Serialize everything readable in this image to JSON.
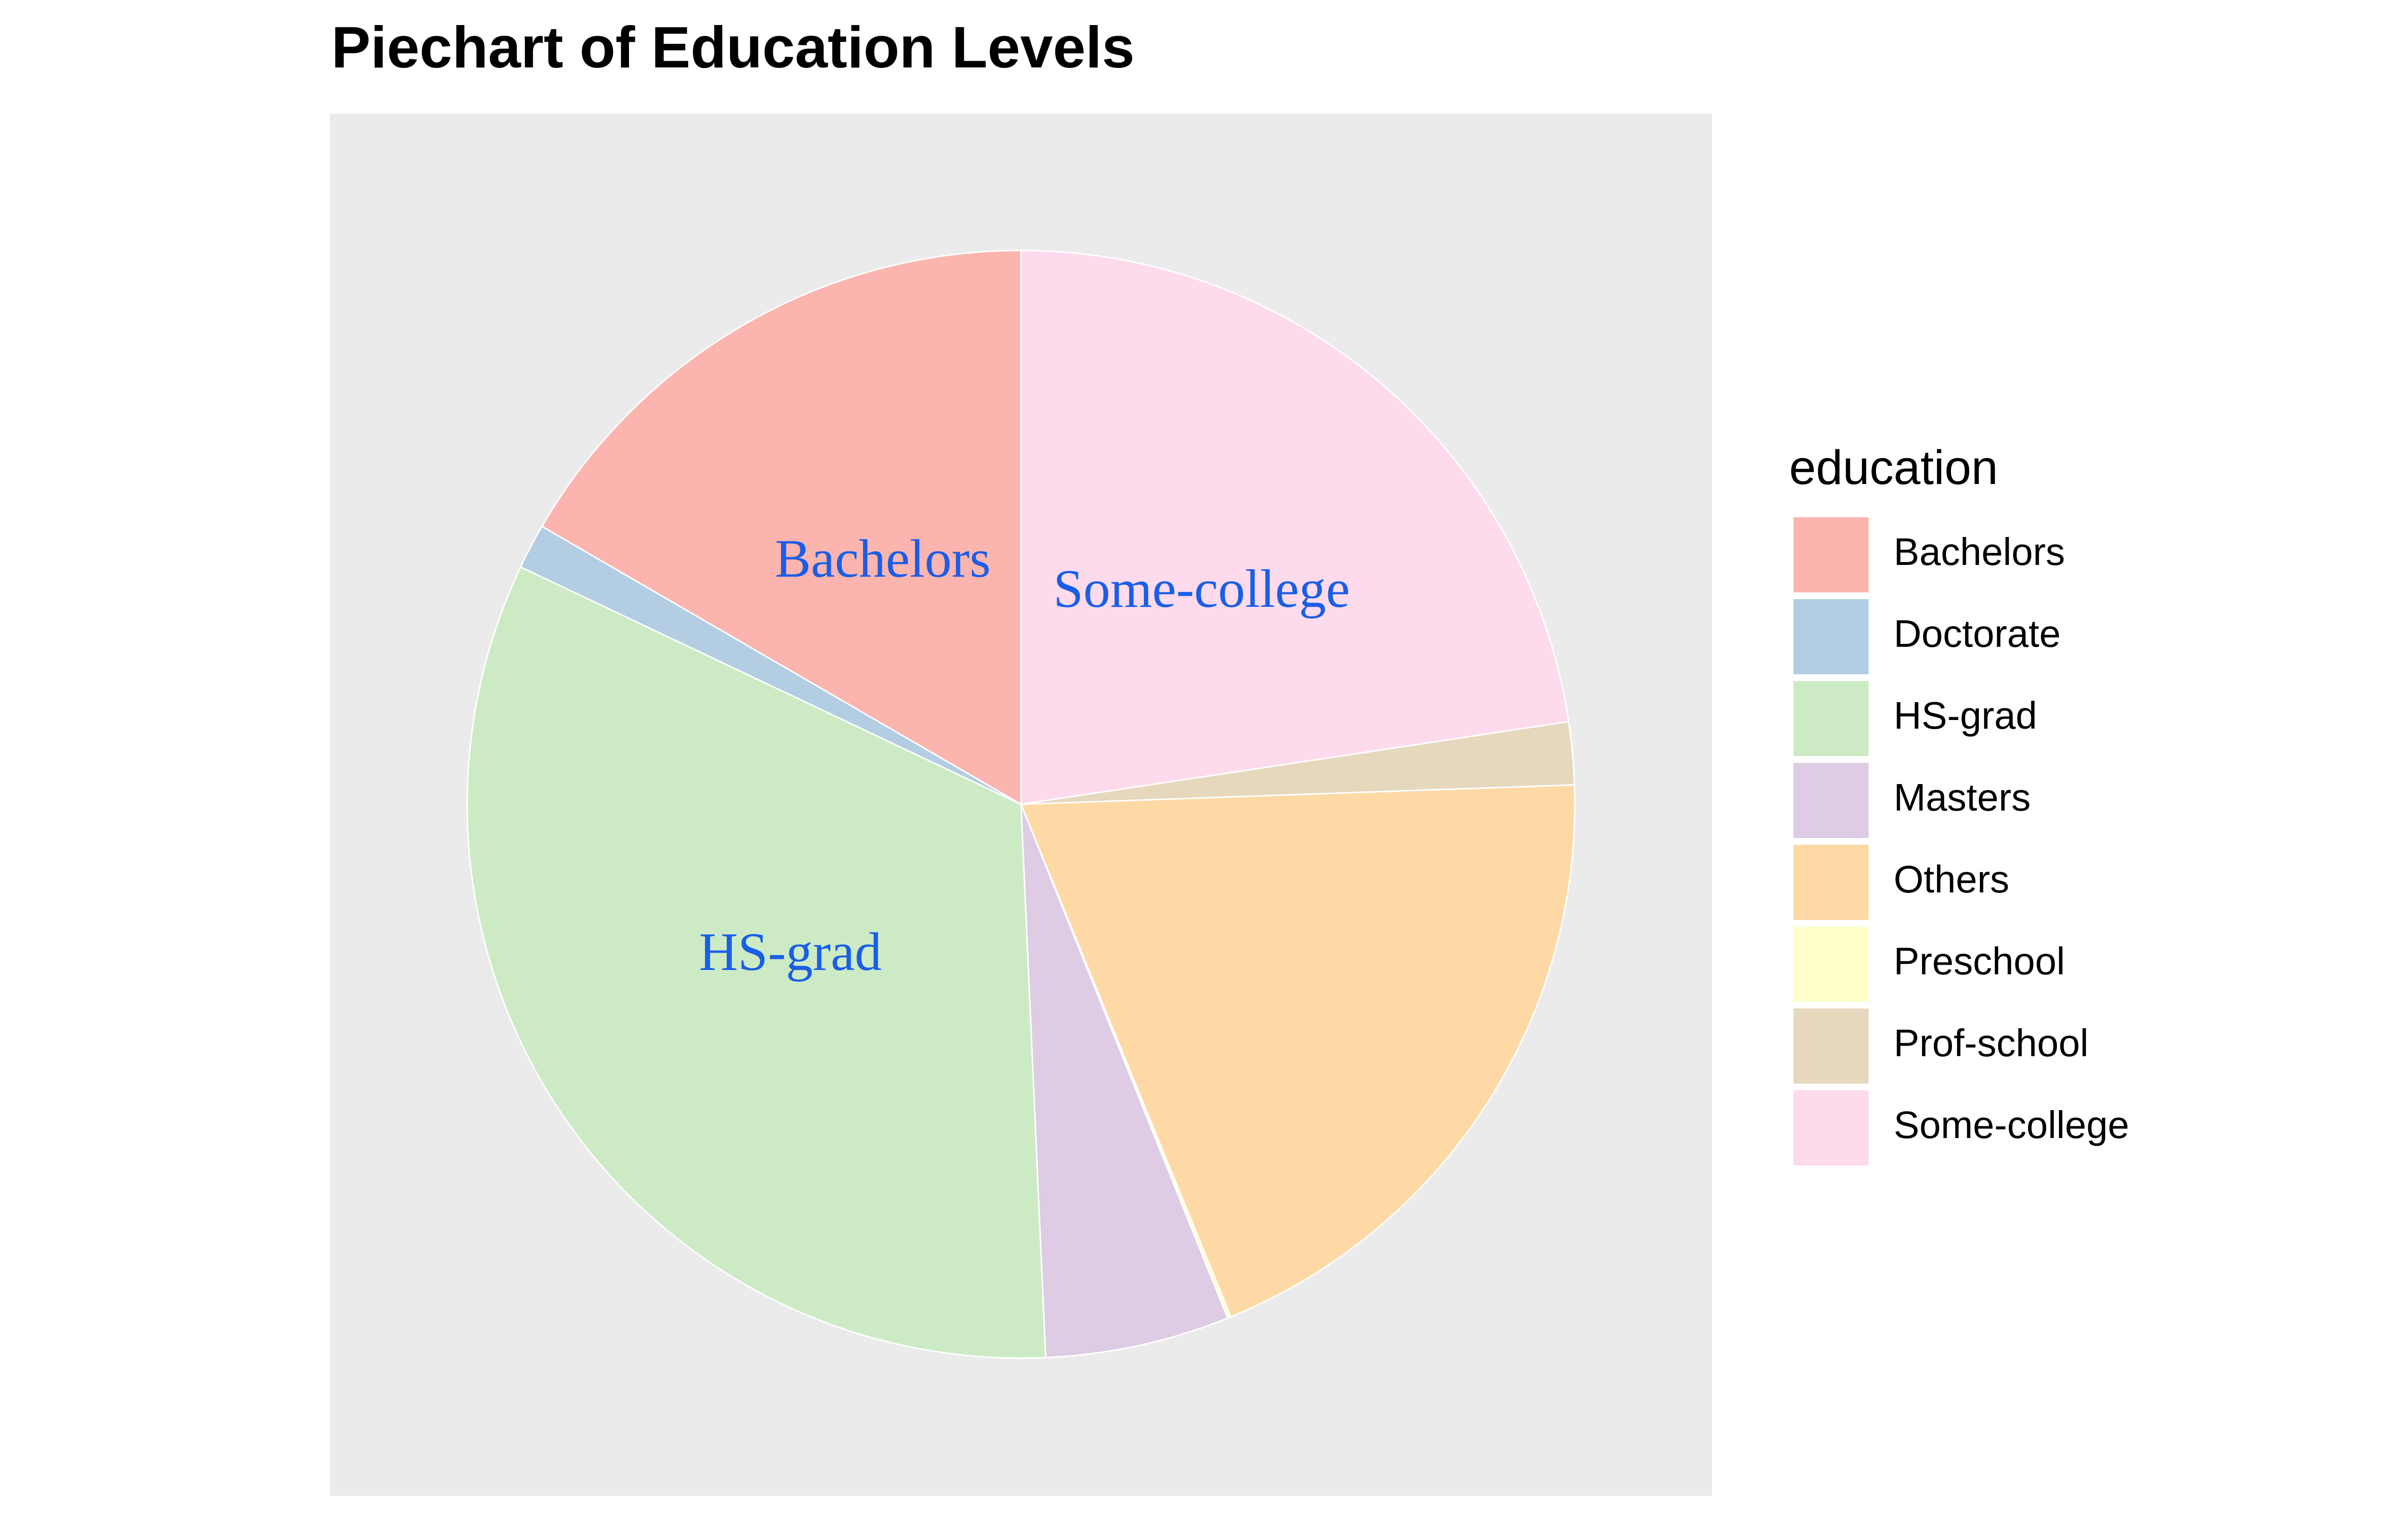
{
  "chart_data": {
    "type": "pie",
    "title": "Piechart of Education Levels",
    "legend": {
      "title": "education",
      "position": "right"
    },
    "panel_background": "#EBEBEB",
    "grid": false,
    "start_angle_deg": 0,
    "direction": "clockwise",
    "slices": [
      {
        "label": "Some-college",
        "value": 22.3,
        "color": "#FDDAEC",
        "show_label": true
      },
      {
        "label": "Prof-school",
        "value": 1.8,
        "color": "#E5D8BD",
        "show_label": false
      },
      {
        "label": "Others",
        "value": 19.1,
        "color": "#FED9A6",
        "show_label": false
      },
      {
        "label": "Preschool",
        "value": 0.1,
        "color": "#FFFFCC",
        "show_label": false
      },
      {
        "label": "Masters",
        "value": 5.3,
        "color": "#DECBE4",
        "show_label": false
      },
      {
        "label": "HS-grad",
        "value": 32.3,
        "color": "#CCEBC5",
        "show_label": true
      },
      {
        "label": "Doctorate",
        "value": 1.3,
        "color": "#B3CDE3",
        "show_label": false
      },
      {
        "label": "Bachelors",
        "value": 16.4,
        "color": "#FBB4AE",
        "show_label": true
      }
    ],
    "legend_order": [
      "Bachelors",
      "Doctorate",
      "HS-grad",
      "Masters",
      "Others",
      "Preschool",
      "Prof-school",
      "Some-college"
    ],
    "slice_label_color": "#1A5EE8"
  }
}
